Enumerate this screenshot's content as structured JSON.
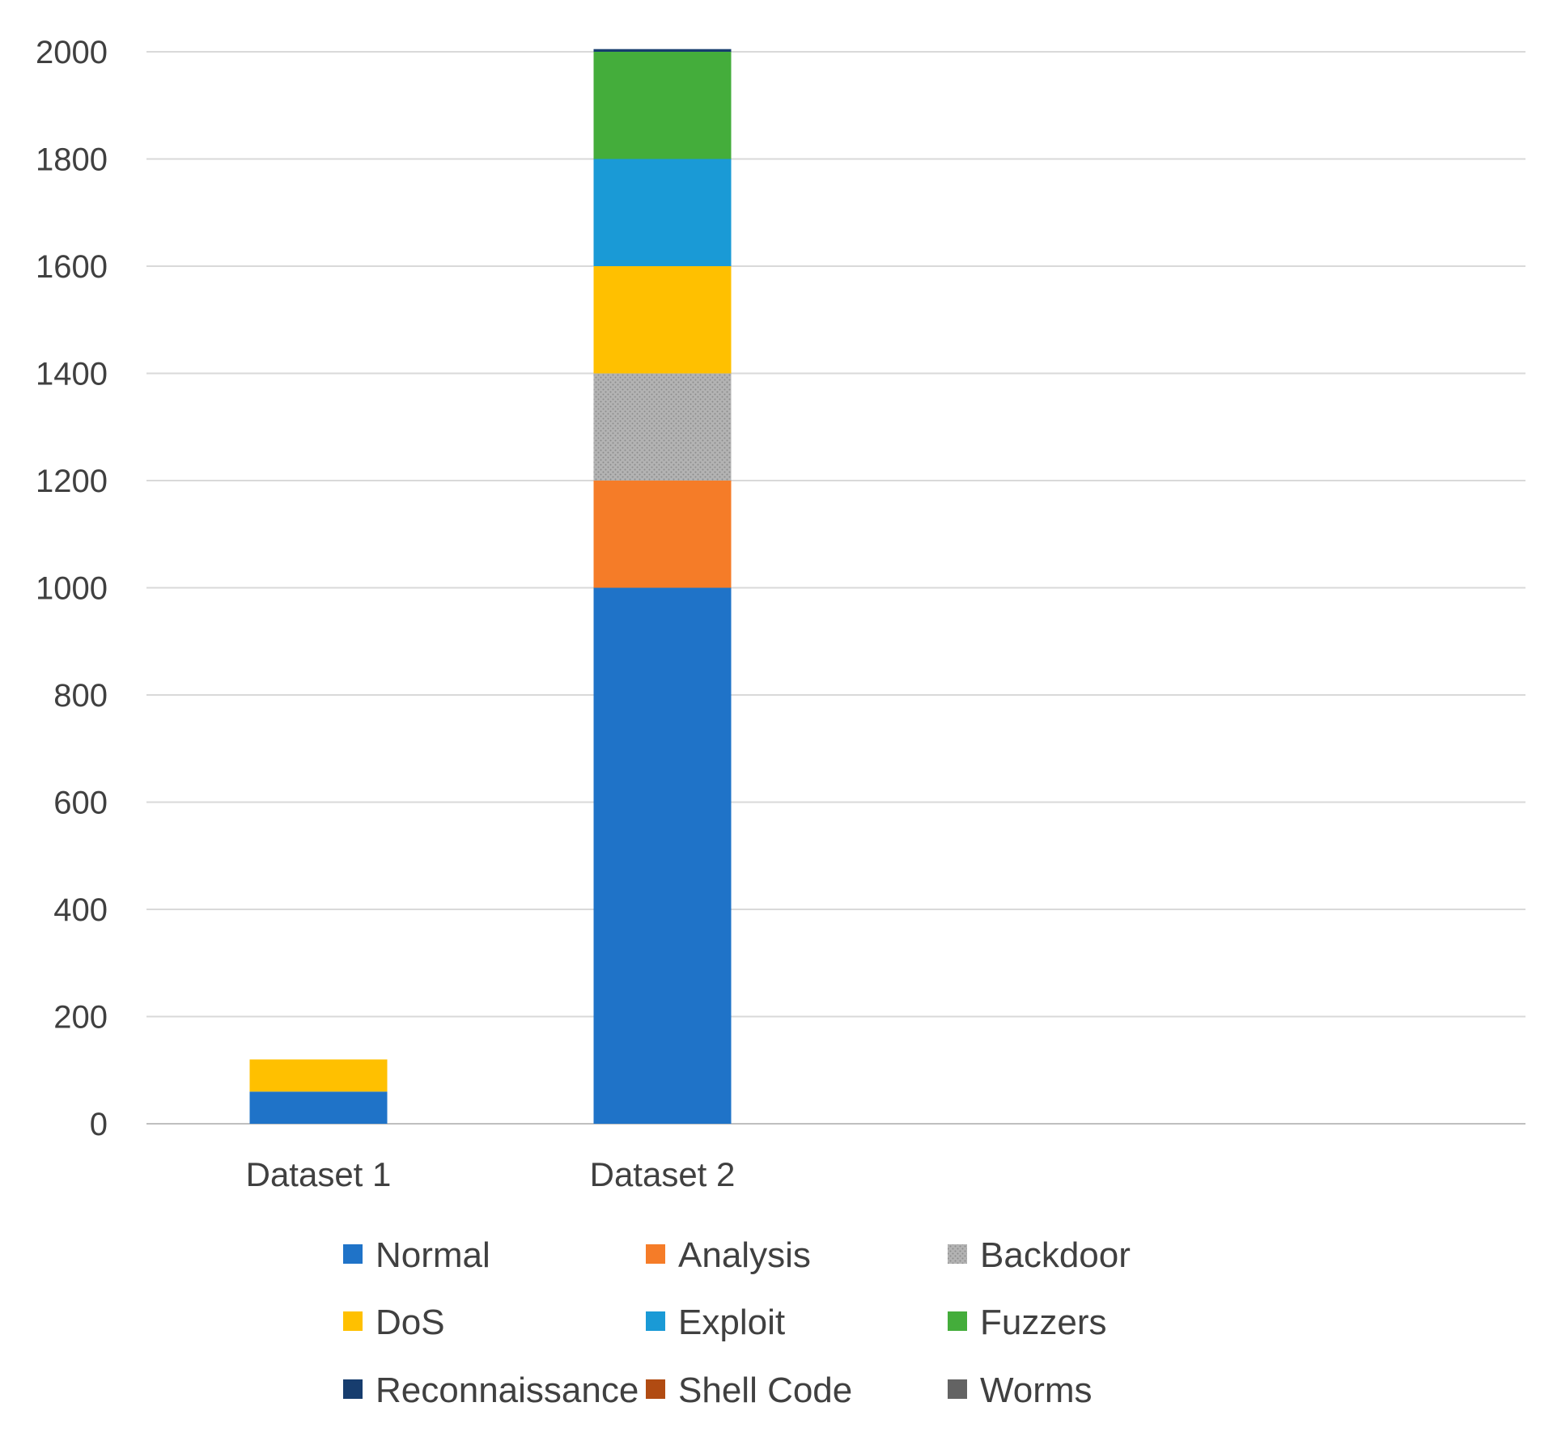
{
  "chart_data": {
    "type": "bar",
    "stacked": true,
    "title": "",
    "xlabel": "",
    "ylabel": "",
    "ylim": [
      0,
      2000
    ],
    "yticks": [
      0,
      200,
      400,
      600,
      800,
      1000,
      1200,
      1400,
      1600,
      1800,
      2000
    ],
    "grid": true,
    "legend_position": "bottom",
    "categories": [
      "Dataset 1",
      "Dataset 2"
    ],
    "series": [
      {
        "name": "Normal",
        "color": "#1f73c8",
        "pattern": "",
        "values": [
          60,
          1000
        ]
      },
      {
        "name": "Analysis",
        "color": "#f57c28",
        "pattern": "",
        "values": [
          0,
          200
        ]
      },
      {
        "name": "Backdoor",
        "color": "#a6a6a6",
        "pattern": "dots",
        "values": [
          0,
          200
        ]
      },
      {
        "name": "DoS",
        "color": "#ffc000",
        "pattern": "",
        "values": [
          60,
          200
        ]
      },
      {
        "name": "Exploit",
        "color": "#1a9ad6",
        "pattern": "",
        "values": [
          0,
          200
        ]
      },
      {
        "name": "Fuzzers",
        "color": "#44ad3b",
        "pattern": "",
        "values": [
          0,
          200
        ]
      },
      {
        "name": "Reconnaissance",
        "color": "#173d6e",
        "pattern": "",
        "values": [
          0,
          5
        ]
      },
      {
        "name": "Shell Code",
        "color": "#b14b12",
        "pattern": "",
        "values": [
          0,
          0
        ]
      },
      {
        "name": "Worms",
        "color": "#636363",
        "pattern": "",
        "values": [
          0,
          0
        ]
      }
    ]
  }
}
